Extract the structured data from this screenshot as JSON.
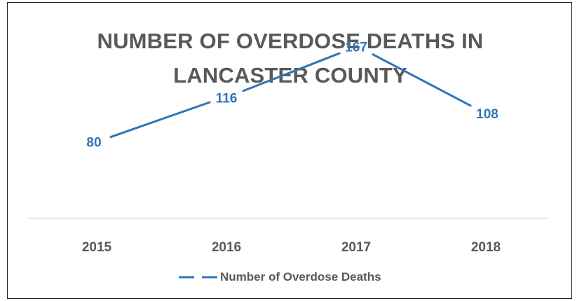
{
  "chart_data": {
    "type": "line",
    "title_lines": [
      "NUMBER OF OVERDOSE DEATHS IN",
      "LANCASTER COUNTY"
    ],
    "categories": [
      "2015",
      "2016",
      "2017",
      "2018"
    ],
    "series": [
      {
        "name": "Number of Overdose Deaths",
        "values": [
          80,
          116,
          167,
          108
        ]
      }
    ],
    "ylim": [
      0,
      200
    ],
    "grid": false,
    "legend_position": "bottom",
    "colors": {
      "line": "#2E75B6",
      "text": "#595959",
      "axis": "#D9D9D9"
    }
  }
}
